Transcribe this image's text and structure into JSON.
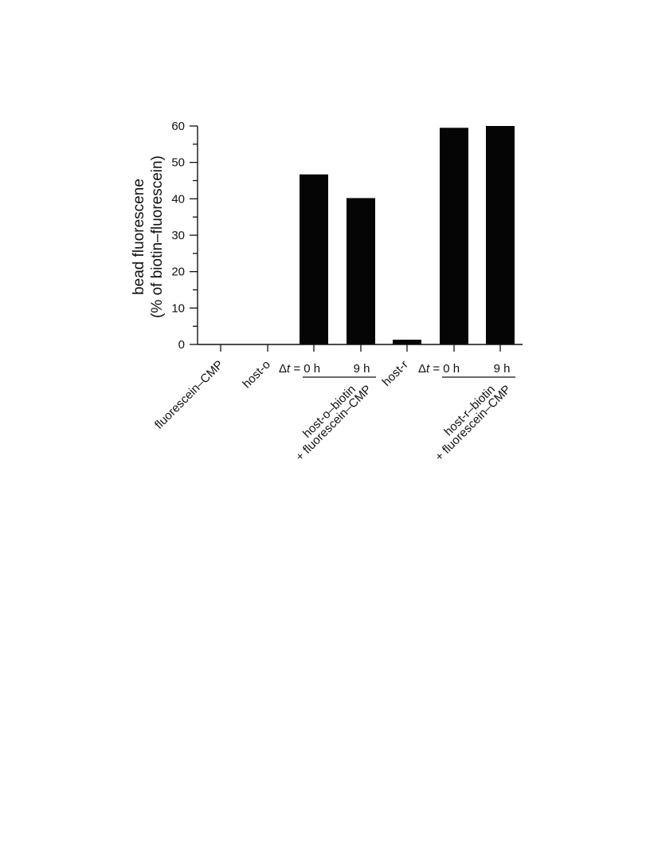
{
  "chart_data": {
    "type": "bar",
    "ylabel_line1": "bead fluorescene",
    "ylabel_line2": "(% of biotin–fluorescein)",
    "yticks": [
      "0",
      "10",
      "20",
      "30",
      "40",
      "50",
      "60"
    ],
    "ylim": [
      0,
      60
    ],
    "bar_color": "#050505",
    "categories": [
      "fluorescein–CMP",
      "host-o",
      "Δt = 0 h",
      "9 h",
      "host-r",
      "Δt = 0 h",
      "9 h"
    ],
    "values": [
      0,
      0,
      46.7,
      40.2,
      1.3,
      59.5,
      60.0
    ],
    "group_labels": [
      {
        "line1": "host-o–biotin",
        "line2": "+ fluorescein–CMP"
      },
      {
        "line1": "host-r–biotin",
        "line2": "+ fluorescein–CMP"
      }
    ],
    "delta_prefix": "Δ",
    "delta_var": "t",
    "delta_rest": " = 0 h",
    "nine_h": "9 h",
    "cat_fluorescein": "fluorescein–CMP",
    "cat_host_o": "host-o",
    "cat_host_r": "host-r"
  }
}
